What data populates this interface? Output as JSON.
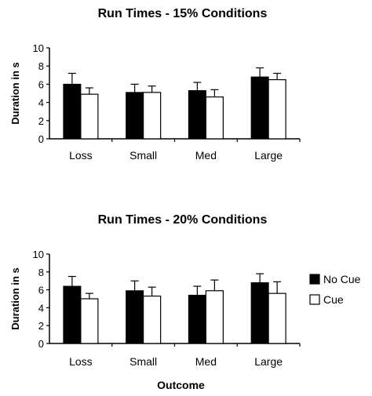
{
  "legend": [
    {
      "label": "No Cue",
      "color": "#000000"
    },
    {
      "label": "Cue",
      "color": "#ffffff"
    }
  ],
  "chart_data": [
    {
      "type": "bar",
      "title": "Run Times - 15% Conditions",
      "ylabel": "Duration in s",
      "xlabel": "",
      "ylim": [
        0,
        10
      ],
      "yticks": [
        0,
        2,
        4,
        6,
        8,
        10
      ],
      "categories": [
        "Loss",
        "Small",
        "Med",
        "Large"
      ],
      "series": [
        {
          "name": "No Cue",
          "color": "#000000",
          "values": [
            6.0,
            5.1,
            5.3,
            6.8
          ],
          "errors": [
            1.2,
            0.9,
            0.9,
            1.0
          ]
        },
        {
          "name": "Cue",
          "color": "#ffffff",
          "values": [
            4.9,
            5.1,
            4.6,
            6.5
          ],
          "errors": [
            0.7,
            0.7,
            0.8,
            0.7
          ]
        }
      ]
    },
    {
      "type": "bar",
      "title": "Run Times - 20% Conditions",
      "ylabel": "Duration in s",
      "xlabel": "Outcome",
      "ylim": [
        0,
        10
      ],
      "yticks": [
        0,
        2,
        4,
        6,
        8,
        10
      ],
      "categories": [
        "Loss",
        "Small",
        "Med",
        "Large"
      ],
      "series": [
        {
          "name": "No Cue",
          "color": "#000000",
          "values": [
            6.4,
            5.9,
            5.4,
            6.8
          ],
          "errors": [
            1.1,
            1.1,
            1.0,
            1.0
          ]
        },
        {
          "name": "Cue",
          "color": "#ffffff",
          "values": [
            5.0,
            5.3,
            5.9,
            5.6
          ],
          "errors": [
            0.6,
            1.0,
            1.2,
            1.3
          ]
        }
      ]
    }
  ]
}
